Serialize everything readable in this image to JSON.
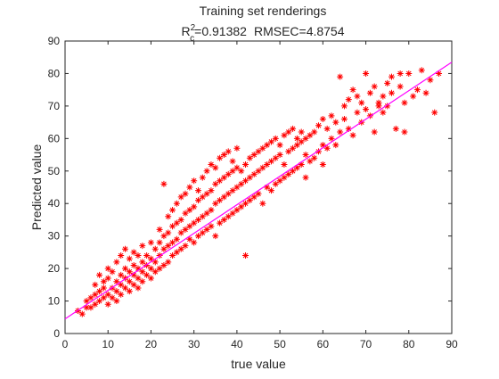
{
  "chart_data": {
    "type": "scatter",
    "title": "Training set renderings",
    "subtitle_parts": {
      "r_base": "R",
      "r_sup": "2",
      "r_sub": "c",
      "r_value": "=0.91382",
      "rmsec": "RMSEC=4.8754"
    },
    "xlabel": "true value",
    "ylabel": "Predicted value",
    "xlim": [
      0,
      90
    ],
    "ylim": [
      0,
      90
    ],
    "x_ticks": [
      "0",
      "10",
      "20",
      "30",
      "40",
      "50",
      "60",
      "70",
      "80",
      "90"
    ],
    "y_ticks": [
      "0",
      "10",
      "20",
      "30",
      "40",
      "50",
      "60",
      "70",
      "80",
      "90"
    ],
    "grid": false,
    "marker": "asterisk",
    "marker_color": "#ff0000",
    "fit_line": {
      "color": "#ff00ff",
      "x": [
        0,
        90
      ],
      "y": [
        4.5,
        83.5
      ]
    },
    "series": [
      {
        "points": [
          [
            3,
            7
          ],
          [
            4,
            6
          ],
          [
            5,
            8
          ],
          [
            5,
            10
          ],
          [
            6,
            8
          ],
          [
            6,
            11
          ],
          [
            7,
            9
          ],
          [
            7,
            12
          ],
          [
            7,
            15
          ],
          [
            8,
            10
          ],
          [
            8,
            13
          ],
          [
            8,
            18
          ],
          [
            9,
            11
          ],
          [
            9,
            14
          ],
          [
            9,
            16
          ],
          [
            10,
            9
          ],
          [
            10,
            12
          ],
          [
            10,
            17
          ],
          [
            10,
            20
          ],
          [
            11,
            11
          ],
          [
            11,
            14
          ],
          [
            11,
            19
          ],
          [
            12,
            10
          ],
          [
            12,
            13
          ],
          [
            12,
            16
          ],
          [
            12,
            22
          ],
          [
            13,
            12
          ],
          [
            13,
            15
          ],
          [
            13,
            18
          ],
          [
            13,
            24
          ],
          [
            14,
            14
          ],
          [
            14,
            17
          ],
          [
            14,
            20
          ],
          [
            14,
            26
          ],
          [
            15,
            13
          ],
          [
            15,
            16
          ],
          [
            15,
            19
          ],
          [
            15,
            23
          ],
          [
            16,
            15
          ],
          [
            16,
            18
          ],
          [
            16,
            21
          ],
          [
            16,
            25
          ],
          [
            17,
            14
          ],
          [
            17,
            17
          ],
          [
            17,
            20
          ],
          [
            17,
            24
          ],
          [
            18,
            16
          ],
          [
            18,
            19
          ],
          [
            18,
            22
          ],
          [
            18,
            27
          ],
          [
            19,
            18
          ],
          [
            19,
            21
          ],
          [
            19,
            24
          ],
          [
            20,
            17
          ],
          [
            20,
            20
          ],
          [
            20,
            23
          ],
          [
            20,
            28
          ],
          [
            21,
            19
          ],
          [
            21,
            22
          ],
          [
            21,
            26
          ],
          [
            22,
            20
          ],
          [
            22,
            24
          ],
          [
            22,
            28
          ],
          [
            22,
            32
          ],
          [
            23,
            21
          ],
          [
            23,
            26
          ],
          [
            23,
            30
          ],
          [
            23,
            46
          ],
          [
            24,
            22
          ],
          [
            24,
            27
          ],
          [
            24,
            31
          ],
          [
            24,
            36
          ],
          [
            25,
            24
          ],
          [
            25,
            28
          ],
          [
            25,
            33
          ],
          [
            25,
            38
          ],
          [
            26,
            25
          ],
          [
            26,
            29
          ],
          [
            26,
            34
          ],
          [
            26,
            40
          ],
          [
            27,
            26
          ],
          [
            27,
            31
          ],
          [
            27,
            35
          ],
          [
            27,
            42
          ],
          [
            28,
            27
          ],
          [
            28,
            32
          ],
          [
            28,
            37
          ],
          [
            28,
            43
          ],
          [
            29,
            29
          ],
          [
            29,
            33
          ],
          [
            29,
            38
          ],
          [
            29,
            45
          ],
          [
            30,
            28
          ],
          [
            30,
            34
          ],
          [
            30,
            39
          ],
          [
            30,
            47
          ],
          [
            31,
            30
          ],
          [
            31,
            35
          ],
          [
            31,
            41
          ],
          [
            31,
            44
          ],
          [
            32,
            31
          ],
          [
            32,
            36
          ],
          [
            32,
            42
          ],
          [
            32,
            48
          ],
          [
            33,
            32
          ],
          [
            33,
            37
          ],
          [
            33,
            43
          ],
          [
            33,
            50
          ],
          [
            34,
            33
          ],
          [
            34,
            38
          ],
          [
            34,
            44
          ],
          [
            34,
            52
          ],
          [
            35,
            30
          ],
          [
            35,
            40
          ],
          [
            35,
            46
          ],
          [
            35,
            51
          ],
          [
            36,
            34
          ],
          [
            36,
            41
          ],
          [
            36,
            47
          ],
          [
            36,
            54
          ],
          [
            37,
            35
          ],
          [
            37,
            42
          ],
          [
            37,
            48
          ],
          [
            37,
            55
          ],
          [
            38,
            36
          ],
          [
            38,
            43
          ],
          [
            38,
            49
          ],
          [
            38,
            56
          ],
          [
            39,
            37
          ],
          [
            39,
            44
          ],
          [
            39,
            50
          ],
          [
            39,
            53
          ],
          [
            40,
            38
          ],
          [
            40,
            45
          ],
          [
            40,
            51
          ],
          [
            40,
            57
          ],
          [
            41,
            39
          ],
          [
            41,
            46
          ],
          [
            41,
            50
          ],
          [
            42,
            24
          ],
          [
            42,
            40
          ],
          [
            42,
            47
          ],
          [
            42,
            52
          ],
          [
            43,
            41
          ],
          [
            43,
            48
          ],
          [
            43,
            54
          ],
          [
            44,
            42
          ],
          [
            44,
            49
          ],
          [
            44,
            55
          ],
          [
            45,
            43
          ],
          [
            45,
            50
          ],
          [
            45,
            56
          ],
          [
            46,
            40
          ],
          [
            46,
            51
          ],
          [
            46,
            57
          ],
          [
            47,
            45
          ],
          [
            47,
            52
          ],
          [
            47,
            58
          ],
          [
            48,
            44
          ],
          [
            48,
            53
          ],
          [
            48,
            59
          ],
          [
            49,
            46
          ],
          [
            49,
            54
          ],
          [
            49,
            60
          ],
          [
            50,
            47
          ],
          [
            50,
            55
          ],
          [
            50,
            58
          ],
          [
            51,
            48
          ],
          [
            51,
            52
          ],
          [
            51,
            61
          ],
          [
            52,
            49
          ],
          [
            52,
            56
          ],
          [
            52,
            62
          ],
          [
            53,
            50
          ],
          [
            53,
            57
          ],
          [
            53,
            63
          ],
          [
            54,
            51
          ],
          [
            54,
            58
          ],
          [
            54,
            60
          ],
          [
            55,
            52
          ],
          [
            55,
            59
          ],
          [
            55,
            62
          ],
          [
            56,
            48
          ],
          [
            56,
            60
          ],
          [
            56,
            55
          ],
          [
            57,
            53
          ],
          [
            57,
            61
          ],
          [
            58,
            54
          ],
          [
            58,
            62
          ],
          [
            59,
            56
          ],
          [
            59,
            64
          ],
          [
            60,
            52
          ],
          [
            60,
            58
          ],
          [
            60,
            66
          ],
          [
            61,
            57
          ],
          [
            61,
            63
          ],
          [
            62,
            60
          ],
          [
            62,
            67
          ],
          [
            63,
            58
          ],
          [
            63,
            65
          ],
          [
            64,
            79
          ],
          [
            64,
            62
          ],
          [
            65,
            66
          ],
          [
            65,
            70
          ],
          [
            66,
            63
          ],
          [
            66,
            72
          ],
          [
            67,
            61
          ],
          [
            67,
            75
          ],
          [
            68,
            68
          ],
          [
            68,
            73
          ],
          [
            69,
            65
          ],
          [
            69,
            71
          ],
          [
            70,
            69
          ],
          [
            70,
            80
          ],
          [
            71,
            67
          ],
          [
            71,
            74
          ],
          [
            72,
            62
          ],
          [
            72,
            76
          ],
          [
            73,
            71
          ],
          [
            73,
            70
          ],
          [
            74,
            73
          ],
          [
            74,
            68
          ],
          [
            75,
            77
          ],
          [
            75,
            70
          ],
          [
            76,
            79
          ],
          [
            76,
            74
          ],
          [
            77,
            63
          ],
          [
            78,
            80
          ],
          [
            78,
            76
          ],
          [
            79,
            71
          ],
          [
            79,
            62
          ],
          [
            80,
            80
          ],
          [
            81,
            73
          ],
          [
            82,
            75
          ],
          [
            83,
            81
          ],
          [
            84,
            74
          ],
          [
            85,
            78
          ],
          [
            86,
            68
          ],
          [
            87,
            80
          ]
        ]
      }
    ]
  }
}
